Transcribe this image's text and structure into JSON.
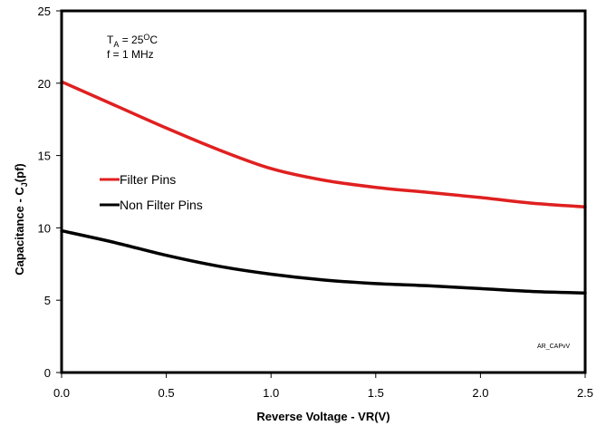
{
  "chart_data": {
    "type": "line",
    "xlabel": "Reverse Voltage - VR(V)",
    "ylabel_main": "Capacitance - C",
    "ylabel_sub": "J",
    "ylabel_end": "(pf)",
    "xlim": [
      0,
      2.5
    ],
    "ylim": [
      0,
      25
    ],
    "x_ticks": [
      "0.0",
      "0.5",
      "1.0",
      "1.5",
      "2.0",
      "2.5"
    ],
    "y_ticks": [
      "0",
      "5",
      "10",
      "15",
      "20",
      "25"
    ],
    "grid": false,
    "legend_position": "middle-left",
    "annotations": {
      "temp_main": "T",
      "temp_sub": "A",
      "temp_rest": " = 25",
      "temp_sup": "O",
      "temp_unit": "C",
      "freq": "f = 1 MHz",
      "code": "AR_CAPvV"
    },
    "series": [
      {
        "name": "Filter Pins",
        "color": "#e02020",
        "x": [
          0.0,
          0.25,
          0.5,
          0.75,
          1.0,
          1.25,
          1.5,
          1.75,
          2.0,
          2.25,
          2.5
        ],
        "y": [
          20.1,
          18.5,
          16.9,
          15.4,
          14.1,
          13.3,
          12.8,
          12.45,
          12.1,
          11.7,
          11.45
        ]
      },
      {
        "name": "Non Filter Pins",
        "color": "#000000",
        "x": [
          0.0,
          0.25,
          0.5,
          0.75,
          1.0,
          1.25,
          1.5,
          1.75,
          2.0,
          2.25,
          2.5
        ],
        "y": [
          9.8,
          9.0,
          8.1,
          7.35,
          6.8,
          6.4,
          6.15,
          6.0,
          5.8,
          5.6,
          5.5
        ]
      }
    ]
  }
}
